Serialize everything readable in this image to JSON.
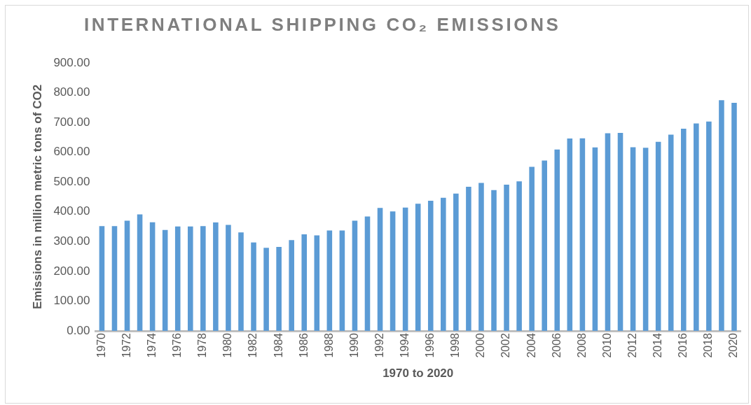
{
  "chart_data": {
    "type": "bar",
    "title": "INTERNATIONAL SHIPPING CO₂ EMISSIONS",
    "xlabel": "1970 to 2020",
    "ylabel": "Emissions in million metric tons of CO2",
    "categories": [
      "1970",
      null,
      "1972",
      null,
      "1974",
      null,
      "1976",
      null,
      "1978",
      null,
      "1980",
      null,
      "1982",
      null,
      "1984",
      null,
      "1986",
      null,
      "1988",
      null,
      "1990",
      null,
      "1992",
      null,
      "1994",
      null,
      "1996",
      null,
      "1998",
      null,
      "2000",
      null,
      "2002",
      null,
      "2004",
      null,
      "2006",
      null,
      "2008",
      null,
      "2010",
      null,
      "2012",
      null,
      "2014",
      null,
      "2016",
      null,
      "2018",
      null,
      "2020"
    ],
    "values": [
      352,
      352,
      370,
      391,
      365,
      339,
      351,
      351,
      352,
      364,
      356,
      331,
      297,
      279,
      282,
      305,
      324,
      321,
      337,
      337,
      370,
      384,
      413,
      401,
      414,
      427,
      437,
      447,
      461,
      484,
      497,
      473,
      491,
      502,
      551,
      572,
      609,
      646,
      647,
      616,
      664,
      665,
      617,
      615,
      635,
      659,
      679,
      697,
      703,
      775,
      766
    ],
    "color": "#5b9bd5",
    "ylim": [
      0,
      900
    ],
    "yticks": [
      {
        "value": 0,
        "label": "0.00"
      },
      {
        "value": 100,
        "label": "100.00"
      },
      {
        "value": 200,
        "label": "200.00"
      },
      {
        "value": 300,
        "label": "300.00"
      },
      {
        "value": 400,
        "label": "400.00"
      },
      {
        "value": 500,
        "label": "500.00"
      },
      {
        "value": 600,
        "label": "600.00"
      },
      {
        "value": 700,
        "label": "700.00"
      },
      {
        "value": 800,
        "label": "800.00"
      },
      {
        "value": 900,
        "label": "900.00"
      }
    ],
    "grid": false,
    "legend": false
  }
}
